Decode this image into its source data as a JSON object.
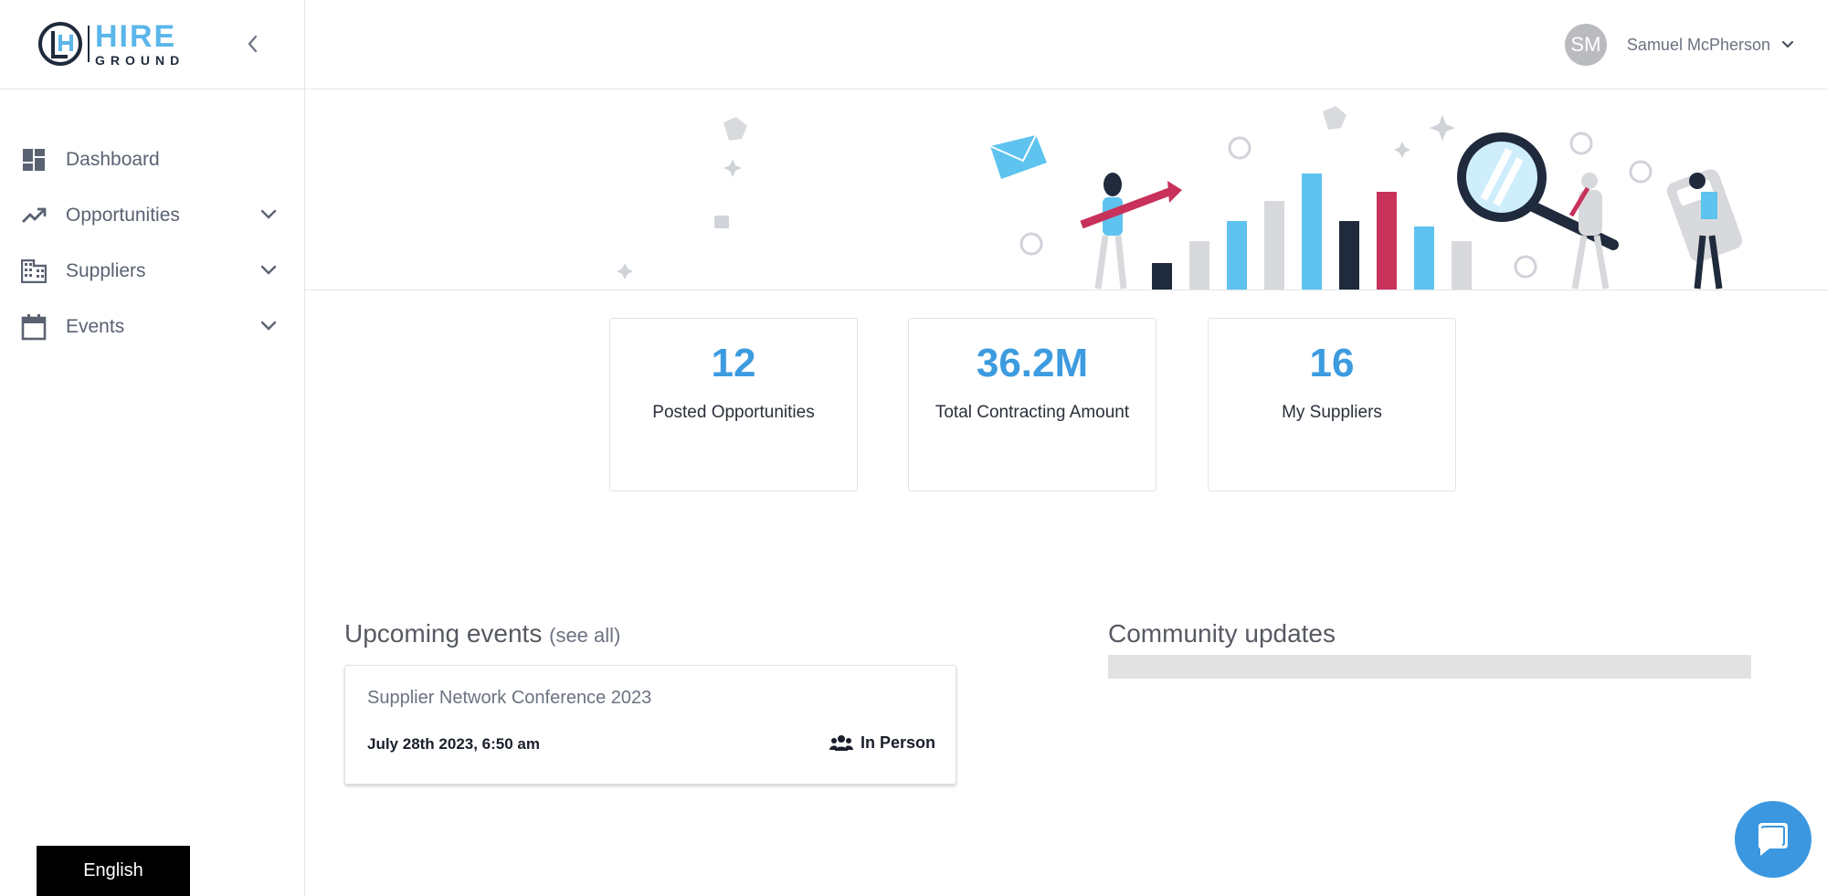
{
  "brand": {
    "name_top": "HIRE",
    "name_bottom": "GROUND"
  },
  "sidebar": {
    "items": [
      {
        "label": "Dashboard",
        "icon": "dashboard-icon",
        "expandable": false
      },
      {
        "label": "Opportunities",
        "icon": "trending-up-icon",
        "expandable": true
      },
      {
        "label": "Suppliers",
        "icon": "building-icon",
        "expandable": true
      },
      {
        "label": "Events",
        "icon": "calendar-icon",
        "expandable": true
      }
    ],
    "language": "English"
  },
  "header": {
    "user_initials": "SM",
    "user_name": "Samuel McPherson"
  },
  "stats": [
    {
      "value": "12",
      "label": "Posted Opportunities"
    },
    {
      "value": "36.2M",
      "label": "Total Contracting Amount"
    },
    {
      "value": "16",
      "label": "My Suppliers"
    }
  ],
  "events_section": {
    "title": "Upcoming events",
    "see_all": "(see all)",
    "event": {
      "title": "Supplier Network Conference 2023",
      "date": "July 28th 2023, 6:50 am",
      "type": "In Person"
    }
  },
  "community": {
    "title": "Community updates"
  },
  "colors": {
    "accent": "#3d9be0",
    "logo_blue": "#5bb6ea",
    "navy": "#1f2a3c",
    "crimson": "#c8325a",
    "sky": "#5ec3ee",
    "grey": "#d8d9dc"
  }
}
